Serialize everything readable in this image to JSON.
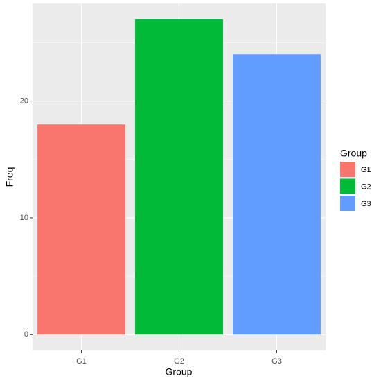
{
  "chart_data": {
    "type": "bar",
    "x_label": "Group",
    "y_label": "Freq",
    "categories": [
      "G1",
      "G2",
      "G3"
    ],
    "values": [
      18,
      27,
      24
    ],
    "colors": [
      "#f8766d",
      "#00ba38",
      "#619cff"
    ],
    "ylim": [
      -1.35,
      28.35
    ],
    "yticks": [
      0,
      10,
      20
    ],
    "minor_yticks": [
      5,
      15,
      25
    ],
    "grid": true,
    "legend": {
      "title": "Group",
      "position": "right"
    }
  }
}
